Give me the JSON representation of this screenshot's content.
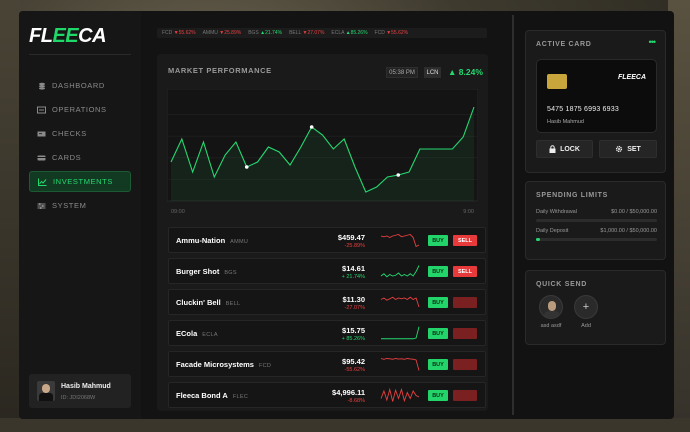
{
  "brand": {
    "prefix": "FL",
    "mid": "EE",
    "suffix": "CA"
  },
  "sidebar": {
    "items": [
      {
        "label": "DASHBOARD",
        "icon": "stack-icon"
      },
      {
        "label": "OPERATIONS",
        "icon": "operations-icon"
      },
      {
        "label": "CHECKS",
        "icon": "check-icon"
      },
      {
        "label": "CARDS",
        "icon": "card-icon"
      },
      {
        "label": "INVESTMENTS",
        "icon": "chart-line-icon",
        "active": true
      },
      {
        "label": "SYSTEM",
        "icon": "sliders-icon"
      }
    ],
    "user": {
      "name": "Hasib Mahmud",
      "id": "ID: JDI2068W"
    }
  },
  "ticker": [
    {
      "sym": "FCD",
      "dir": "down",
      "pct": "55.62%"
    },
    {
      "sym": "AMMU",
      "dir": "down",
      "pct": "25.89%"
    },
    {
      "sym": "BGS",
      "dir": "up",
      "pct": "21.74%"
    },
    {
      "sym": "BELL",
      "dir": "down",
      "pct": "27.07%"
    },
    {
      "sym": "ECLA",
      "dir": "up",
      "pct": "85.26%"
    },
    {
      "sym": "FCD",
      "dir": "down",
      "pct": "55.62%"
    }
  ],
  "performance": {
    "title": "MARKET PERFORMANCE",
    "time": "05:38 PM",
    "currency": "LCN",
    "change": "8.24%",
    "x_start": "09:00",
    "x_end": "9:00",
    "points": [
      0.35,
      0.58,
      0.25,
      0.55,
      0.2,
      0.42,
      0.55,
      0.3,
      0.35,
      0.5,
      0.45,
      0.32,
      0.5,
      0.7,
      0.62,
      0.48,
      0.58,
      0.3,
      0.05,
      0.1,
      0.2,
      0.22,
      0.25,
      0.48,
      0.48,
      0.48,
      0.48,
      0.6,
      0.9
    ],
    "highlight_points": [
      0.45,
      0.7,
      0.25
    ]
  },
  "stocks": [
    {
      "name": "Ammu-Nation",
      "ticker": "AMMU",
      "price": "$459.47",
      "change": "-25.89%",
      "dir": "down",
      "sell_active": true,
      "spark": [
        0.8,
        0.75,
        0.8,
        0.7,
        0.8,
        0.85,
        0.9,
        0.75,
        0.8,
        0.85,
        0.9,
        0.7,
        0.1,
        0.2
      ]
    },
    {
      "name": "Burger Shot",
      "ticker": "BGS",
      "price": "$14.61",
      "change": "+ 21.74%",
      "dir": "up",
      "sell_active": true,
      "spark": [
        0.2,
        0.35,
        0.15,
        0.3,
        0.2,
        0.25,
        0.4,
        0.2,
        0.3,
        0.2,
        0.35,
        0.2,
        0.5,
        0.9
      ]
    },
    {
      "name": "Cluckin' Bell",
      "ticker": "BELL",
      "price": "$11.30",
      "change": "-27.07%",
      "dir": "down",
      "sell_active": false,
      "spark": [
        0.7,
        0.8,
        0.65,
        0.75,
        0.85,
        0.7,
        0.8,
        0.75,
        0.8,
        0.7,
        0.85,
        0.7,
        0.8,
        0.2
      ]
    },
    {
      "name": "ECola",
      "ticker": "ECLA",
      "price": "$15.75",
      "change": "+ 85.26%",
      "dir": "up",
      "sell_active": false,
      "spark": [
        0.15,
        0.15,
        0.15,
        0.15,
        0.15,
        0.15,
        0.15,
        0.15,
        0.15,
        0.15,
        0.15,
        0.15,
        0.2,
        0.95
      ]
    },
    {
      "name": "Facade Microsystems",
      "ticker": "FCD",
      "price": "$95.42",
      "change": "-55.62%",
      "dir": "down",
      "sell_active": false,
      "spark": [
        0.9,
        0.85,
        0.9,
        0.88,
        0.85,
        0.9,
        0.86,
        0.88,
        0.85,
        0.9,
        0.87,
        0.85,
        0.8,
        0.1
      ]
    },
    {
      "name": "Fleeca Bond A",
      "ticker": "FLEC",
      "price": "$4,996.11",
      "change": "-8.68%",
      "dir": "down",
      "sell_active": false,
      "spark": [
        0.3,
        0.8,
        0.2,
        0.9,
        0.1,
        0.85,
        0.3,
        0.9,
        0.15,
        0.7,
        0.3,
        0.8,
        0.5,
        0.4
      ]
    }
  ],
  "buttons": {
    "buy": "BUY",
    "sell": "SELL"
  },
  "active_card": {
    "title": "ACTIVE CARD",
    "brand": "FLEECA",
    "number": "5475 1875 6993 6933",
    "holder": "Hasib Mahmud",
    "lock_label": "LOCK",
    "set_label": "SET"
  },
  "spending": {
    "title": "SPENDING LIMITS",
    "withdrawal_label": "Daily Withdrawal",
    "withdrawal_value": "$0.00 / $50,000.00",
    "withdrawal_fraction": 0.0,
    "deposit_label": "Daily Deposit",
    "deposit_value": "$1,000.00 / $50,000.00",
    "deposit_fraction": 0.02
  },
  "quick_send": {
    "title": "QUICK SEND",
    "contacts": [
      {
        "name": "asd asdf"
      }
    ],
    "add_label": "Add"
  },
  "colors": {
    "accent": "#25d870",
    "danger": "#e84040",
    "bg": "#121212"
  }
}
